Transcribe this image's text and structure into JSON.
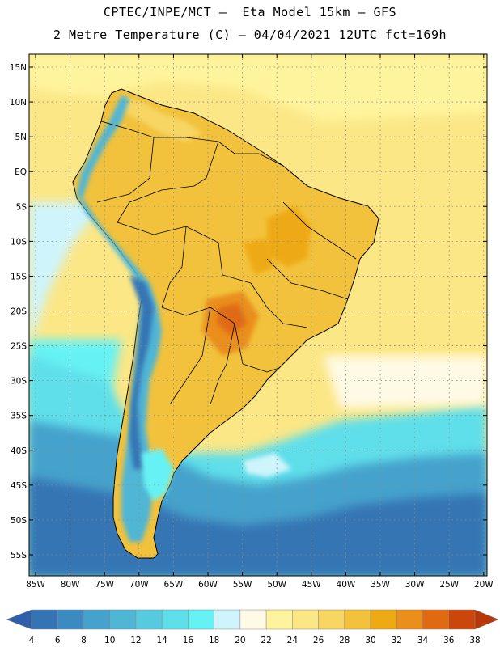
{
  "title_line1": "CPTEC/INPE/MCT –  Eta Model 15km – GFS",
  "title_line2": "2 Metre Temperature (C) – 04/04/2021 12UTC fct=169h",
  "lat_labels": [
    "15N",
    "10N",
    "5N",
    "EQ",
    "5S",
    "10S",
    "15S",
    "20S",
    "25S",
    "30S",
    "35S",
    "40S",
    "45S",
    "50S",
    "55S"
  ],
  "lon_labels": [
    "85W",
    "80W",
    "75W",
    "70W",
    "65W",
    "60W",
    "55W",
    "50W",
    "45W",
    "40W",
    "35W",
    "30W",
    "25W",
    "20W"
  ],
  "colorbar": {
    "labels": [
      "4",
      "6",
      "8",
      "10",
      "12",
      "14",
      "16",
      "18",
      "20",
      "22",
      "24",
      "26",
      "28",
      "30",
      "32",
      "34",
      "36",
      "38"
    ],
    "colors": [
      "#2f5fa8",
      "#3474b4",
      "#3c8ac2",
      "#45a2cc",
      "#4fb6d6",
      "#58cadf",
      "#5fdfea",
      "#66f2f4",
      "#cff4fb",
      "#fffae6",
      "#fff49e",
      "#fbe786",
      "#f7d664",
      "#f2c23c",
      "#eeaa14",
      "#ea8e1c",
      "#e06a12",
      "#cb460c",
      "#b8380a"
    ]
  },
  "colors": {
    "ocean_south": "#2f5fa8",
    "ocean_mid": "#45a2cc",
    "ocean_cold": "#5fdfea",
    "ocean_warm": "#f7d664",
    "land_warm": "#f2c23c",
    "land_hot": "#eeaa14",
    "andes_cold": "#4fb6d6"
  }
}
